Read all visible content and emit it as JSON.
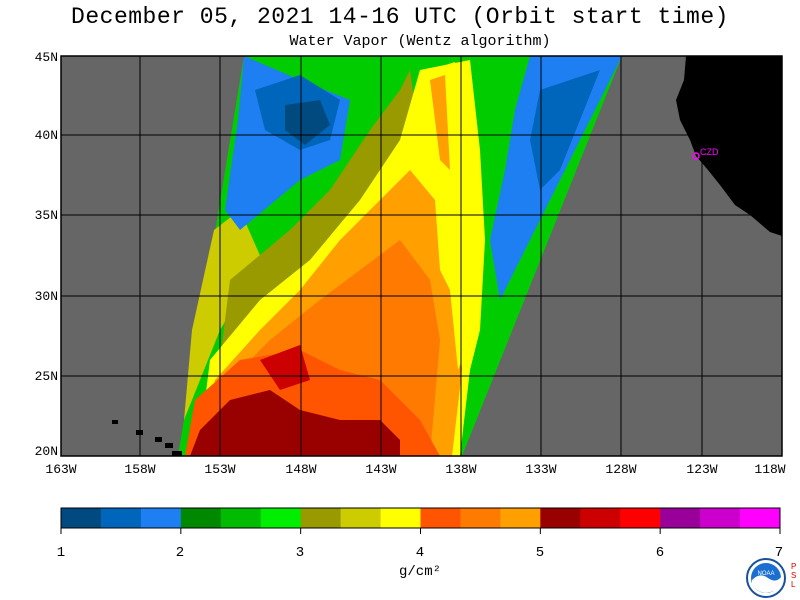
{
  "title": "December 05, 2021  14-16 UTC  (Orbit start time)",
  "subtitle": "Water Vapor (Wentz algorithm)",
  "lat_labels": [
    "45N",
    "40N",
    "35N",
    "30N",
    "25N",
    "20N"
  ],
  "lon_labels": [
    "163W",
    "158W",
    "153W",
    "148W",
    "143W",
    "138W",
    "133W",
    "128W",
    "123W",
    "118W"
  ],
  "station_label": "CZD",
  "colorbar": {
    "colors": [
      "#004a80",
      "#0066bb",
      "#1e7ff2",
      "#008800",
      "#00bb00",
      "#00ee00",
      "#999900",
      "#cccc00",
      "#ffff00",
      "#ff5500",
      "#ff7a00",
      "#ff9f00",
      "#990000",
      "#cc0000",
      "#ff0000",
      "#990099",
      "#cc00cc",
      "#ff00ff"
    ],
    "tick_labels": [
      "1",
      "2",
      "3",
      "4",
      "5",
      "6",
      "7"
    ],
    "units": "g/cm²"
  },
  "colors": {
    "land": "#000000",
    "no_data": "#666666",
    "background": "#ffffff",
    "station": "#ff00ff"
  },
  "icons": {
    "logo": "noaa-logo"
  }
}
